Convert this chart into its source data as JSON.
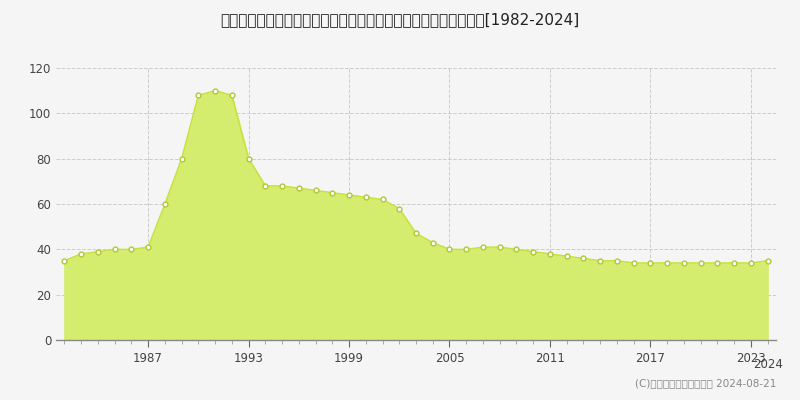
{
  "title": "大阪府枚方市春日東町２丁目３６３番５外　地価公示　地価推移[1982-2024]",
  "years": [
    1982,
    1983,
    1984,
    1985,
    1986,
    1987,
    1988,
    1989,
    1990,
    1991,
    1992,
    1993,
    1994,
    1995,
    1996,
    1997,
    1998,
    1999,
    2000,
    2001,
    2002,
    2003,
    2004,
    2005,
    2006,
    2007,
    2008,
    2009,
    2010,
    2011,
    2012,
    2013,
    2014,
    2015,
    2016,
    2017,
    2018,
    2019,
    2020,
    2021,
    2022,
    2023,
    2024
  ],
  "values": [
    35,
    38,
    39,
    40,
    40,
    41,
    60,
    80,
    108,
    110,
    108,
    80,
    68,
    68,
    67,
    66,
    65,
    64,
    63,
    62,
    58,
    47,
    43,
    40,
    40,
    41,
    41,
    40,
    39,
    38,
    37,
    36,
    35,
    35,
    34,
    34,
    34,
    34,
    34,
    34,
    34,
    34,
    35
  ],
  "fill_color": "#d4ed6e",
  "line_color": "#c8e040",
  "marker_color": "#ffffff",
  "marker_edge_color": "#b0c832",
  "bg_color": "#f5f5f5",
  "plot_bg_color": "#f5f5f5",
  "grid_color": "#cccccc",
  "ylim": [
    0,
    120
  ],
  "yticks": [
    0,
    20,
    40,
    60,
    80,
    100,
    120
  ],
  "xtick_major": [
    1987,
    1993,
    1999,
    2005,
    2011,
    2017,
    2023
  ],
  "xtick_extra": 2024,
  "copyright_text": "(C)土地価格ドットコム　 2024-08-21"
}
